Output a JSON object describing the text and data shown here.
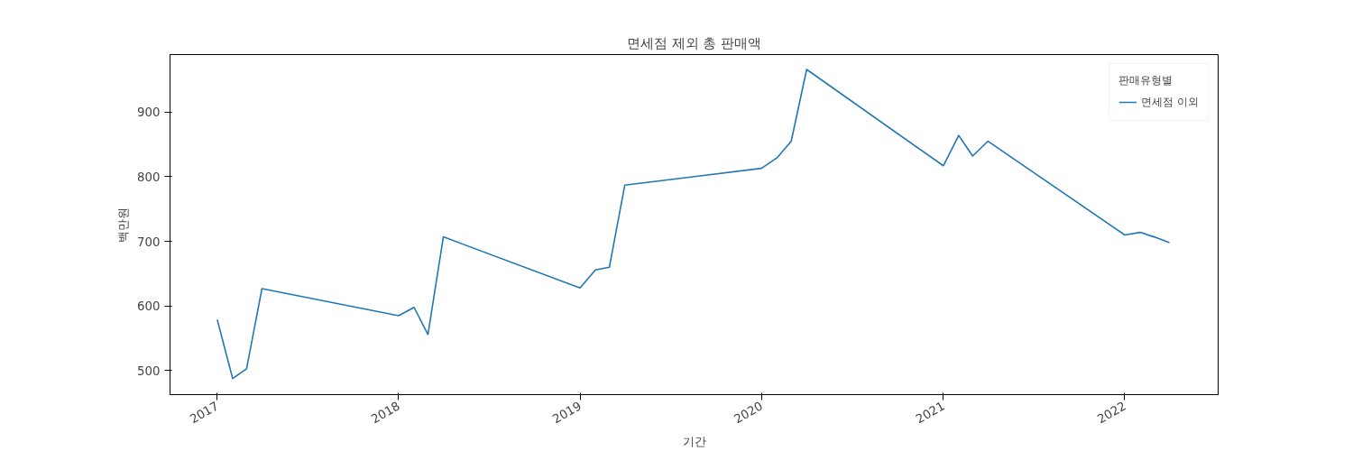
{
  "chart_data": {
    "type": "line",
    "title": "면세점 제외 총 판매액",
    "xlabel": "기간",
    "ylabel": "백만원",
    "legend_title": "판매유형별",
    "x": [
      "2017-01",
      "2017-02",
      "2017-03",
      "2017-04",
      "2018-01",
      "2018-02",
      "2018-03",
      "2018-04",
      "2019-01",
      "2019-02",
      "2019-03",
      "2019-04",
      "2020-01",
      "2020-02",
      "2020-03",
      "2020-04",
      "2021-01",
      "2021-02",
      "2021-03",
      "2021-04",
      "2022-01",
      "2022-02",
      "2022-03",
      "2022-04"
    ],
    "series": [
      {
        "name": "면세점 이외",
        "color": "#1f77b4",
        "values": [
          579,
          488,
          503,
          627,
          585,
          598,
          556,
          707,
          628,
          656,
          660,
          787,
          813,
          829,
          855,
          966,
          817,
          864,
          832,
          855,
          710,
          714,
          707,
          698
        ]
      }
    ],
    "xlim": [
      "2016-09-28",
      "2022-07-08"
    ],
    "xticks": [
      "2017",
      "2018",
      "2019",
      "2020",
      "2021",
      "2022"
    ],
    "ylim": [
      463,
      989
    ],
    "yticks": [
      500,
      600,
      700,
      800,
      900
    ],
    "grid": false,
    "legend": "top right",
    "marker": "none",
    "line_style": "solid"
  }
}
